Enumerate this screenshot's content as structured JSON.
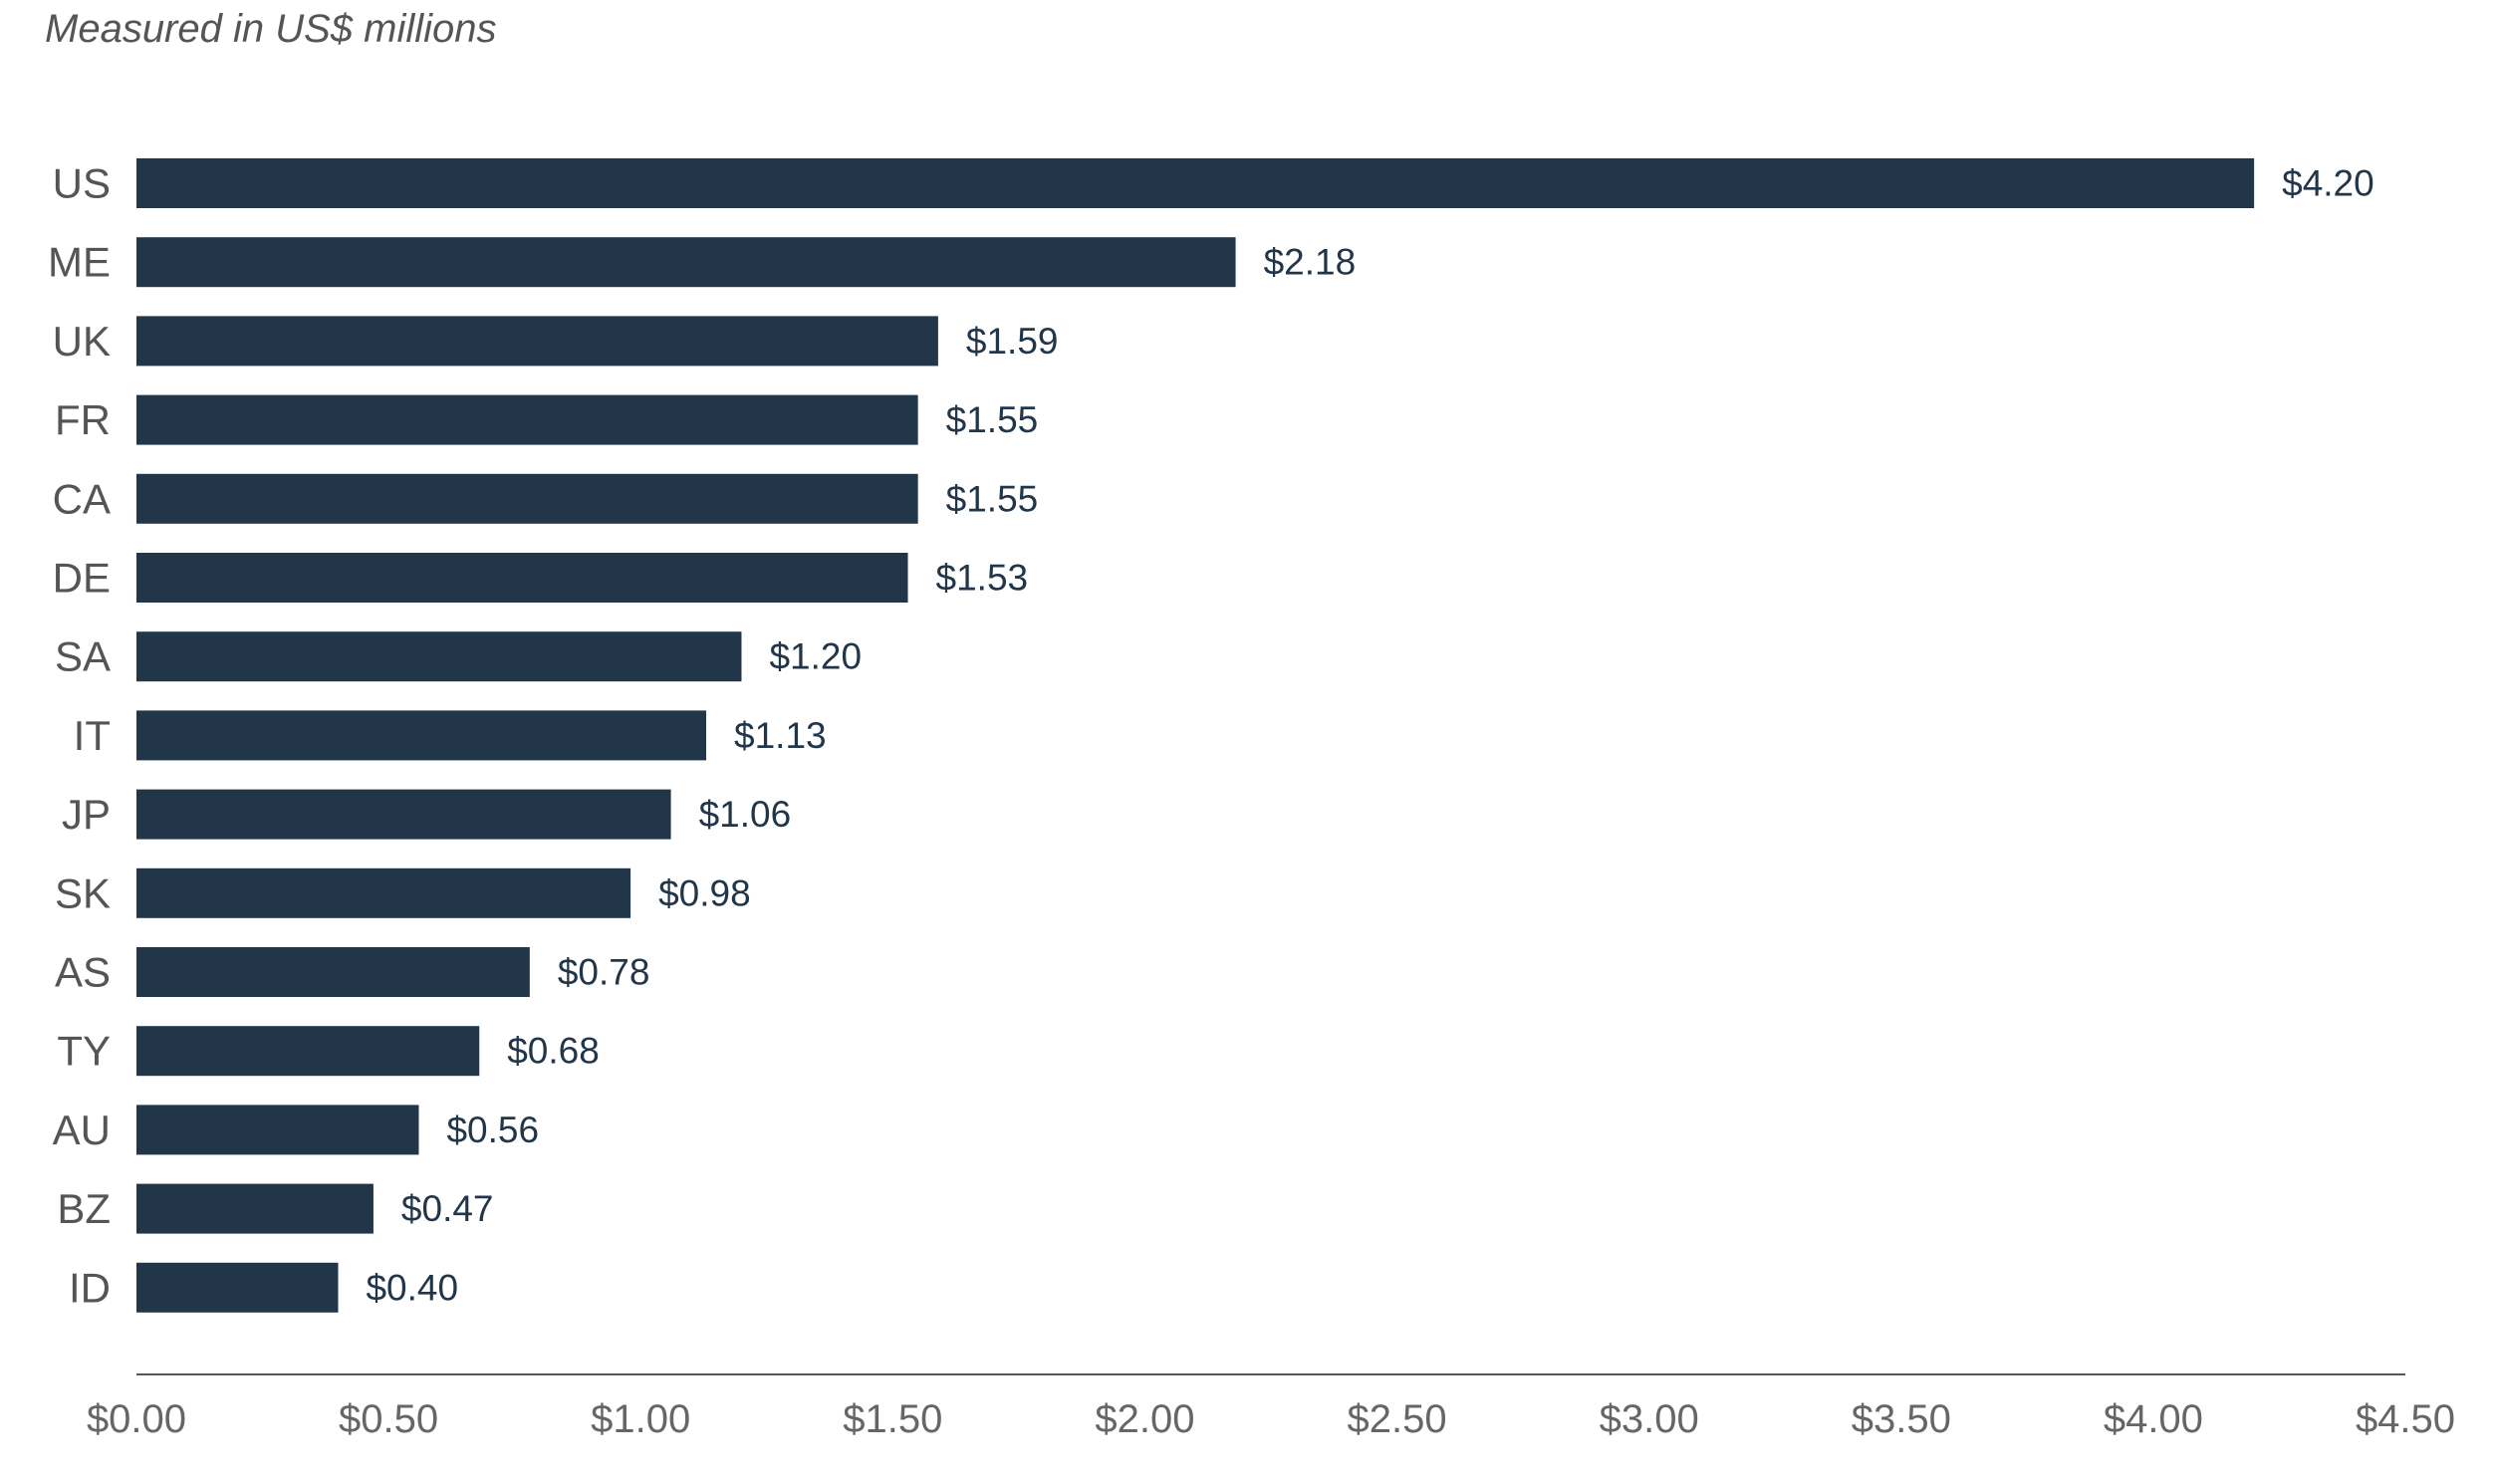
{
  "chart_data": {
    "type": "bar",
    "orientation": "horizontal",
    "title": "",
    "subtitle": "Measured in US$ millions",
    "xlabel": "",
    "ylabel": "",
    "categories": [
      "US",
      "ME",
      "UK",
      "FR",
      "CA",
      "DE",
      "SA",
      "IT",
      "JP",
      "SK",
      "AS",
      "TY",
      "AU",
      "BZ",
      "ID"
    ],
    "values": [
      4.2,
      2.18,
      1.59,
      1.55,
      1.55,
      1.53,
      1.2,
      1.13,
      1.06,
      0.98,
      0.78,
      0.68,
      0.56,
      0.47,
      0.4
    ],
    "value_labels": [
      "$4.20",
      "$2.18",
      "$1.59",
      "$1.55",
      "$1.55",
      "$1.53",
      "$1.20",
      "$1.13",
      "$1.06",
      "$0.98",
      "$0.78",
      "$0.68",
      "$0.56",
      "$0.47",
      "$0.40"
    ],
    "xlim": [
      0,
      4.5
    ],
    "xticks": [
      0,
      0.5,
      1.0,
      1.5,
      2.0,
      2.5,
      3.0,
      3.5,
      4.0,
      4.5
    ],
    "xtick_labels": [
      "$0.00",
      "$0.50",
      "$1.00",
      "$1.50",
      "$2.00",
      "$2.50",
      "$3.00",
      "$3.50",
      "$4.00",
      "$4.50"
    ],
    "grid": false,
    "legend": "none",
    "colors": {
      "bar": "#22364a",
      "axis": "#555555",
      "value_text": "#22364a",
      "label_text": "#555555"
    }
  }
}
